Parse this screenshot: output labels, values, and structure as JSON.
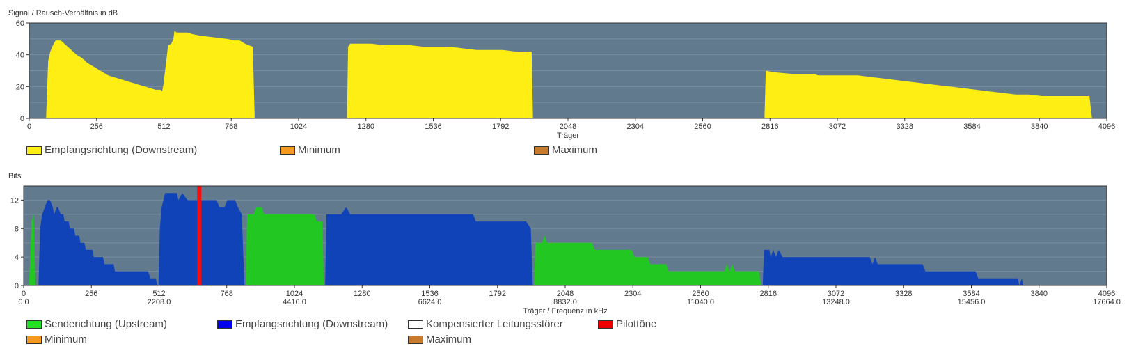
{
  "chart_data": [
    {
      "type": "area",
      "title": "",
      "ylabel": "Signal / Rausch-Verhältnis in dB",
      "xlabel": "Träger",
      "xlim": [
        0,
        4096
      ],
      "ylim": [
        0,
        60
      ],
      "yticks": [
        0,
        20,
        40,
        60
      ],
      "xticks": [
        0,
        256,
        512,
        768,
        1024,
        1280,
        1536,
        1792,
        2048,
        2304,
        2560,
        2816,
        3072,
        3328,
        3584,
        3840,
        4096
      ],
      "grid": true,
      "background": "#627a8d",
      "legend": [
        {
          "label": "Empfangsrichtung (Downstream)",
          "color": "#ffee14"
        },
        {
          "label": "Minimum",
          "color": "#f59a1b"
        },
        {
          "label": "Maximum",
          "color": "#c87a2d"
        }
      ],
      "series": [
        {
          "color": "#ffee14",
          "points": [
            [
              64,
              0
            ],
            [
              72,
              36
            ],
            [
              80,
              42
            ],
            [
              90,
              46
            ],
            [
              100,
              49
            ],
            [
              120,
              49
            ],
            [
              140,
              46
            ],
            [
              160,
              43
            ],
            [
              180,
              40
            ],
            [
              200,
              38
            ],
            [
              220,
              35
            ],
            [
              240,
              33
            ],
            [
              260,
              31
            ],
            [
              280,
              29
            ],
            [
              300,
              27
            ],
            [
              320,
              26
            ],
            [
              340,
              25
            ],
            [
              360,
              24
            ],
            [
              380,
              23
            ],
            [
              400,
              22
            ],
            [
              420,
              21
            ],
            [
              440,
              20
            ],
            [
              460,
              19
            ],
            [
              480,
              18
            ],
            [
              500,
              18
            ],
            [
              505,
              17
            ],
            [
              510,
              21
            ],
            [
              520,
              35
            ],
            [
              528,
              46
            ],
            [
              540,
              47
            ],
            [
              548,
              50
            ],
            [
              552,
              55
            ],
            [
              560,
              54
            ],
            [
              600,
              54
            ],
            [
              620,
              53
            ],
            [
              650,
              52
            ],
            [
              700,
              51
            ],
            [
              750,
              50
            ],
            [
              780,
              49
            ],
            [
              800,
              49
            ],
            [
              820,
              47
            ],
            [
              850,
              45
            ],
            [
              857,
              0
            ],
            [
              1208,
              0
            ],
            [
              1212,
              45
            ],
            [
              1220,
              47
            ],
            [
              1250,
              47
            ],
            [
              1300,
              47
            ],
            [
              1350,
              46
            ],
            [
              1400,
              46
            ],
            [
              1450,
              46
            ],
            [
              1500,
              45
            ],
            [
              1550,
              45
            ],
            [
              1600,
              45
            ],
            [
              1650,
              44
            ],
            [
              1700,
              43
            ],
            [
              1750,
              43
            ],
            [
              1800,
              43
            ],
            [
              1850,
              42
            ],
            [
              1910,
              42
            ],
            [
              1915,
              0
            ],
            [
              2795,
              0
            ],
            [
              2800,
              30
            ],
            [
              2830,
              29
            ],
            [
              2900,
              28
            ],
            [
              2980,
              28
            ],
            [
              3000,
              27
            ],
            [
              3050,
              27
            ],
            [
              3100,
              27
            ],
            [
              3150,
              27
            ],
            [
              3200,
              26
            ],
            [
              3250,
              25
            ],
            [
              3300,
              24
            ],
            [
              3350,
              23
            ],
            [
              3400,
              22
            ],
            [
              3450,
              21
            ],
            [
              3500,
              20
            ],
            [
              3550,
              19
            ],
            [
              3600,
              18
            ],
            [
              3650,
              17
            ],
            [
              3700,
              16
            ],
            [
              3750,
              15
            ],
            [
              3800,
              15
            ],
            [
              3850,
              14
            ],
            [
              3900,
              14
            ],
            [
              3950,
              14
            ],
            [
              4000,
              14
            ],
            [
              4030,
              14
            ],
            [
              4040,
              0
            ]
          ]
        }
      ]
    },
    {
      "type": "area",
      "title": "",
      "ylabel": "Bits",
      "xlabel": "Träger / Frequenz in kHz",
      "xlim": [
        0,
        4096
      ],
      "ylim": [
        0,
        14
      ],
      "yticks": [
        0,
        4,
        8,
        12
      ],
      "xticks": [
        0,
        256,
        512,
        768,
        1024,
        1280,
        1536,
        1792,
        2048,
        2304,
        2560,
        2816,
        3072,
        3328,
        3584,
        3840,
        4096
      ],
      "freq_labels": [
        "0.0",
        "",
        "2208.0",
        "",
        "4416.0",
        "",
        "6624.0",
        "",
        "8832.0",
        "",
        "11040.0",
        "",
        "13248.0",
        "",
        "15456.0",
        "",
        "17664.0"
      ],
      "grid": true,
      "background": "#627a8d",
      "pilot_carrier": 664,
      "legend": [
        {
          "label": "Senderichtung (Upstream)",
          "color": "#22e022"
        },
        {
          "label": "Empfangsrichtung (Downstream)",
          "color": "#0000ee"
        },
        {
          "label": "Kompensierter Leitungsstörer",
          "color": "#ffffff"
        },
        {
          "label": "Pilottöne",
          "color": "#ee0000"
        },
        {
          "label": "Minimum",
          "color": "#f59a1b"
        },
        {
          "label": "Maximum",
          "color": "#c87a2d"
        }
      ],
      "series": [
        {
          "name": "Senderichtung (Upstream)",
          "color": "#22c722",
          "points": [
            [
              20,
              0
            ],
            [
              25,
              4
            ],
            [
              30,
              9
            ],
            [
              38,
              10
            ],
            [
              45,
              0
            ]
          ]
        },
        {
          "name": "Empfangsrichtung (Downstream)",
          "color": "#1143b8",
          "points": [
            [
              56,
              0
            ],
            [
              62,
              8
            ],
            [
              70,
              10
            ],
            [
              80,
              11
            ],
            [
              90,
              12
            ],
            [
              100,
              12
            ],
            [
              110,
              11
            ],
            [
              115,
              10
            ],
            [
              125,
              11
            ],
            [
              130,
              11
            ],
            [
              140,
              10
            ],
            [
              150,
              10
            ],
            [
              155,
              9
            ],
            [
              170,
              9
            ],
            [
              175,
              8
            ],
            [
              190,
              8
            ],
            [
              195,
              7
            ],
            [
              210,
              7
            ],
            [
              215,
              6
            ],
            [
              230,
              6
            ],
            [
              235,
              5
            ],
            [
              260,
              5
            ],
            [
              265,
              4
            ],
            [
              300,
              4
            ],
            [
              305,
              3
            ],
            [
              340,
              3
            ],
            [
              345,
              2
            ],
            [
              470,
              2
            ],
            [
              480,
              1
            ],
            [
              500,
              1
            ],
            [
              505,
              0
            ]
          ]
        },
        {
          "name": "Empfangsrichtung (Downstream)",
          "color": "#1143b8",
          "points": [
            [
              510,
              0
            ],
            [
              515,
              8
            ],
            [
              522,
              11
            ],
            [
              528,
              12
            ],
            [
              535,
              13
            ],
            [
              580,
              13
            ],
            [
              585,
              12
            ],
            [
              600,
              13
            ],
            [
              620,
              12
            ],
            [
              660,
              12
            ],
            [
              670,
              12
            ],
            [
              700,
              12
            ],
            [
              730,
              12
            ],
            [
              740,
              11
            ],
            [
              760,
              11
            ],
            [
              770,
              12
            ],
            [
              800,
              12
            ],
            [
              810,
              11
            ],
            [
              825,
              10
            ],
            [
              835,
              0
            ]
          ]
        },
        {
          "name": "Senderichtung (Upstream)",
          "color": "#22c722",
          "points": [
            [
              840,
              0
            ],
            [
              845,
              10
            ],
            [
              870,
              10
            ],
            [
              880,
              11
            ],
            [
              900,
              11
            ],
            [
              910,
              10
            ],
            [
              960,
              10
            ],
            [
              1000,
              10
            ],
            [
              1080,
              10
            ],
            [
              1100,
              10
            ],
            [
              1110,
              9
            ],
            [
              1130,
              9
            ],
            [
              1135,
              0
            ]
          ]
        },
        {
          "name": "Empfangsrichtung (Downstream)",
          "color": "#1143b8",
          "points": [
            [
              1140,
              0
            ],
            [
              1145,
              10
            ],
            [
              1200,
              10
            ],
            [
              1220,
              11
            ],
            [
              1235,
              10
            ],
            [
              1300,
              10
            ],
            [
              1400,
              10
            ],
            [
              1500,
              10
            ],
            [
              1600,
              10
            ],
            [
              1700,
              10
            ],
            [
              1710,
              9
            ],
            [
              1900,
              9
            ],
            [
              1918,
              8
            ],
            [
              1925,
              0
            ]
          ]
        },
        {
          "name": "Senderichtung (Upstream)",
          "color": "#22c722",
          "points": [
            [
              1930,
              0
            ],
            [
              1935,
              6
            ],
            [
              1960,
              6
            ],
            [
              1970,
              7
            ],
            [
              1978,
              6
            ],
            [
              2150,
              6
            ],
            [
              2160,
              5
            ],
            [
              2300,
              5
            ],
            [
              2310,
              4
            ],
            [
              2360,
              4
            ],
            [
              2370,
              3
            ],
            [
              2430,
              3
            ],
            [
              2440,
              2
            ],
            [
              2650,
              2
            ],
            [
              2660,
              3
            ],
            [
              2670,
              2
            ],
            [
              2680,
              3
            ],
            [
              2690,
              2
            ],
            [
              2780,
              2
            ],
            [
              2790,
              0
            ]
          ]
        },
        {
          "name": "Empfangsrichtung (Downstream)",
          "color": "#1143b8",
          "points": [
            [
              2795,
              0
            ],
            [
              2800,
              5
            ],
            [
              2820,
              5
            ],
            [
              2825,
              4
            ],
            [
              2835,
              5
            ],
            [
              2845,
              4
            ],
            [
              2855,
              5
            ],
            [
              2870,
              4
            ],
            [
              3100,
              4
            ],
            [
              3200,
              4
            ],
            [
              3210,
              3
            ],
            [
              3220,
              4
            ],
            [
              3230,
              3
            ],
            [
              3400,
              3
            ],
            [
              3410,
              2
            ],
            [
              3600,
              2
            ],
            [
              3610,
              1
            ],
            [
              3760,
              1
            ],
            [
              3765,
              0
            ],
            [
              3775,
              1
            ],
            [
              3780,
              0
            ]
          ]
        }
      ]
    }
  ]
}
